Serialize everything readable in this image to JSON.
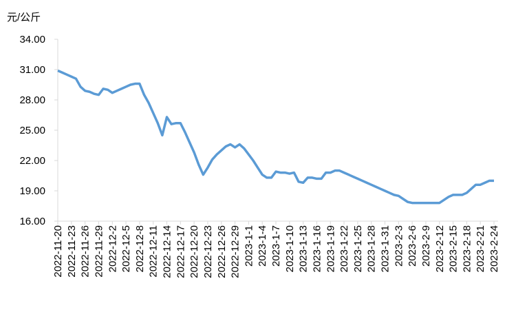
{
  "chart_data": {
    "type": "line",
    "y_label": "元/公斤",
    "categories": [
      "2022-11-20",
      null,
      null,
      "2022-11-23",
      null,
      null,
      "2022-11-26",
      null,
      null,
      "2022-11-29",
      null,
      null,
      "2022-12-2",
      null,
      null,
      "2022-12-5",
      null,
      null,
      "2022-12-8",
      null,
      null,
      "2022-12-11",
      null,
      null,
      "2022-12-14",
      null,
      null,
      "2022-12-17",
      null,
      null,
      "2022-12-20",
      null,
      null,
      "2022-12-23",
      null,
      null,
      "2022-12-26",
      null,
      null,
      "2022-12-29",
      null,
      null,
      "2023-1-1",
      null,
      null,
      "2023-1-4",
      null,
      null,
      "2023-1-7",
      null,
      null,
      "2023-1-10",
      null,
      null,
      "2023-1-13",
      null,
      null,
      "2023-1-16",
      null,
      null,
      "2023-1-19",
      null,
      null,
      "2023-1-22",
      null,
      null,
      "2023-1-25",
      null,
      null,
      "2023-1-28",
      null,
      null,
      "2023-1-31",
      null,
      null,
      "2023-2-3",
      null,
      null,
      "2023-2-6",
      null,
      null,
      "2023-2-9",
      null,
      null,
      "2023-2-12",
      null,
      null,
      "2023-2-15",
      null,
      null,
      "2023-2-18",
      null,
      null,
      "2023-2-21",
      null,
      null,
      "2023-2-24"
    ],
    "values": [
      30.9,
      30.7,
      30.5,
      30.3,
      30.1,
      29.3,
      28.9,
      28.8,
      28.6,
      28.5,
      29.1,
      29.0,
      28.7,
      28.9,
      29.1,
      29.3,
      29.5,
      29.6,
      29.6,
      28.5,
      27.7,
      26.7,
      25.7,
      24.5,
      26.3,
      25.6,
      25.7,
      25.7,
      24.8,
      23.8,
      22.8,
      21.6,
      20.6,
      21.3,
      22.1,
      22.6,
      23.0,
      23.4,
      23.6,
      23.3,
      23.6,
      23.2,
      22.6,
      22.0,
      21.3,
      20.6,
      20.3,
      20.3,
      20.9,
      20.8,
      20.8,
      20.7,
      20.8,
      19.9,
      19.8,
      20.3,
      20.3,
      20.2,
      20.2,
      20.8,
      20.8,
      21.0,
      21.0,
      20.8,
      20.6,
      20.4,
      20.2,
      20.0,
      19.8,
      19.6,
      19.4,
      19.2,
      19.0,
      18.8,
      18.6,
      18.5,
      18.2,
      17.9,
      17.8,
      17.8,
      17.8,
      17.8,
      17.8,
      17.8,
      17.8,
      18.1,
      18.4,
      18.6,
      18.6,
      18.6,
      18.8,
      19.2,
      19.6,
      19.6,
      19.8,
      20.0,
      20.0
    ],
    "color": "#5b9bd5",
    "ylim": [
      16,
      34
    ],
    "yticks": [
      {
        "value": 16,
        "label": "16.00"
      },
      {
        "value": 19,
        "label": "19.00"
      },
      {
        "value": 22,
        "label": "22.00"
      },
      {
        "value": 25,
        "label": "25.00"
      },
      {
        "value": 28,
        "label": "28.00"
      },
      {
        "value": 31,
        "label": "31.00"
      },
      {
        "value": 34,
        "label": "34.00"
      }
    ],
    "grid": false
  }
}
